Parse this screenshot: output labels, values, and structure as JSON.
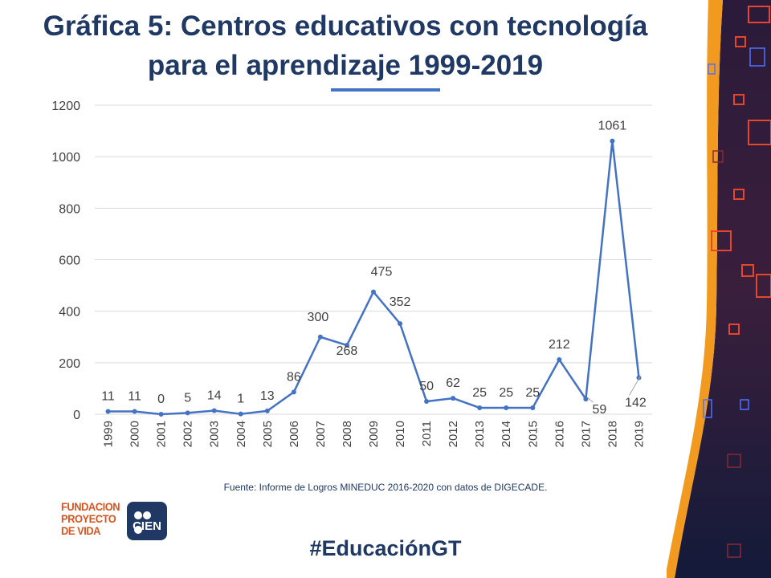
{
  "slide": {
    "title_line1": "Gráfica 5: Centros educativos con tecnología",
    "title_line2": "para el aprendizaje 1999-2019",
    "source": "Fuente: Informe de Logros MINEDUC 2016-2020 con datos de DIGECADE.",
    "hashtag": "#EducaciónGT"
  },
  "logos": {
    "fundacion_lines": [
      "FUNDACION",
      "PROYECTO",
      "DE VIDA"
    ],
    "cien": "CIEN"
  },
  "colors": {
    "title": "#1f3864",
    "accent": "#4472c4",
    "line": "#4472c4",
    "grid": "#d9d9d9",
    "axis_text": "#404040",
    "orange": "#d9541e"
  },
  "chart_data": {
    "type": "line",
    "title": "",
    "xlabel": "",
    "ylabel": "",
    "x": [
      "1999",
      "2000",
      "2001",
      "2002",
      "2003",
      "2004",
      "2005",
      "2006",
      "2007",
      "2008",
      "2009",
      "2010",
      "2011",
      "2012",
      "2013",
      "2014",
      "2015",
      "2016",
      "2017",
      "2018",
      "2019"
    ],
    "series": [
      {
        "values": [
          11,
          11,
          0,
          5,
          14,
          1,
          13,
          86,
          300,
          268,
          475,
          352,
          50,
          62,
          25,
          25,
          25,
          212,
          59,
          1061,
          142
        ]
      }
    ],
    "ylim": [
      0,
      1200
    ],
    "yticks": [
      0,
      200,
      400,
      600,
      800,
      1000,
      1200
    ],
    "grid": true,
    "legend": "none",
    "data_labels": true,
    "x_tick_rotation": "vertical"
  }
}
